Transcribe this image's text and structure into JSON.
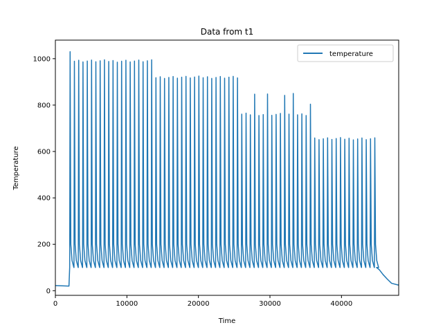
{
  "chart_data": {
    "type": "line",
    "title": "Data from t1",
    "xlabel": "Time",
    "ylabel": "Temperature",
    "xlim": [
      0,
      48000
    ],
    "ylim": [
      -20,
      1080
    ],
    "xticks": [
      0,
      10000,
      20000,
      30000,
      40000
    ],
    "yticks": [
      0,
      200,
      400,
      600,
      800,
      1000
    ],
    "grid": false,
    "legend_position": "top-right",
    "series": [
      {
        "name": "temperature",
        "color": "#1f77b4",
        "baseline": [
          [
            0,
            22
          ],
          [
            1900,
            20
          ]
        ],
        "cycle_trough": 100,
        "cycle_start": 2000,
        "cycle_period": 600,
        "cycle_count": 72,
        "segments": [
          {
            "start": 2000,
            "end": 2600,
            "peak": 1035
          },
          {
            "start": 2600,
            "end": 14000,
            "peak": 990
          },
          {
            "start": 14000,
            "end": 26000,
            "peak": 920
          },
          {
            "start": 26000,
            "end": 36000,
            "peak": 760
          },
          {
            "start": 36000,
            "end": 44900,
            "peak": 655
          }
        ],
        "overshoots": [
          {
            "x": 27800,
            "y": 845
          },
          {
            "x": 29600,
            "y": 845
          },
          {
            "x": 32300,
            "y": 845
          },
          {
            "x": 33500,
            "y": 845
          },
          {
            "x": 34800,
            "y": 845
          },
          {
            "x": 35900,
            "y": 805
          }
        ],
        "cooldown": [
          [
            44900,
            100
          ],
          [
            45300,
            90
          ],
          [
            45800,
            70
          ],
          [
            46400,
            50
          ],
          [
            47000,
            32
          ],
          [
            48000,
            24
          ]
        ]
      }
    ]
  }
}
